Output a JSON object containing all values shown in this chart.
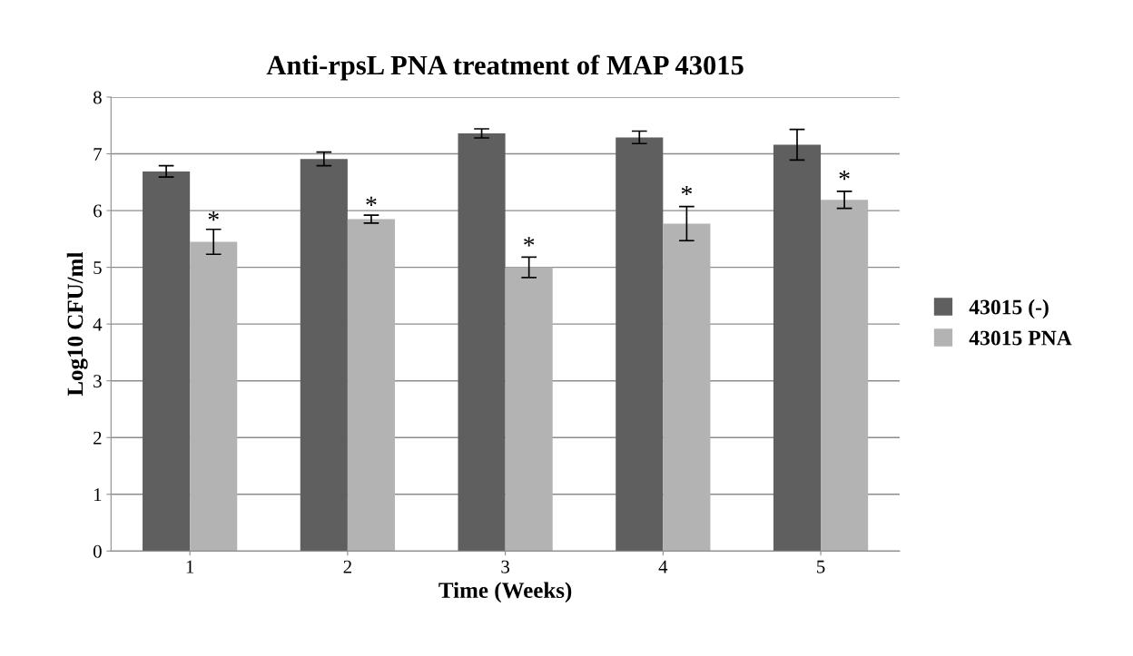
{
  "chart_data": {
    "type": "bar",
    "title": "Anti-rpsL PNA treatment of MAP 43015",
    "xlabel": "Time (Weeks)",
    "ylabel": "Log10 CFU/ml",
    "categories": [
      "1",
      "2",
      "3",
      "4",
      "5"
    ],
    "series": [
      {
        "name": "43015 (-)",
        "color": "#5f5f5f",
        "values": [
          6.69,
          6.91,
          7.36,
          7.29,
          7.16
        ],
        "errors": [
          0.1,
          0.12,
          0.08,
          0.11,
          0.27
        ]
      },
      {
        "name": "43015 PNA",
        "color": "#b3b3b3",
        "values": [
          5.45,
          5.85,
          5.0,
          5.77,
          6.19
        ],
        "errors": [
          0.22,
          0.07,
          0.18,
          0.3,
          0.15
        ]
      }
    ],
    "annotations": [
      {
        "text": "*",
        "x": "1",
        "y": 5.8
      },
      {
        "text": "*",
        "x": "2",
        "y": 6.06
      },
      {
        "text": "*",
        "x": "3",
        "y": 5.35
      },
      {
        "text": "*",
        "x": "4",
        "y": 6.25
      },
      {
        "text": "*",
        "x": "5",
        "y": 6.52
      }
    ],
    "ylim": [
      0,
      8
    ],
    "yticks": [
      0,
      1,
      2,
      3,
      4,
      5,
      6,
      7,
      8
    ],
    "grid": "y",
    "legend": "right"
  }
}
